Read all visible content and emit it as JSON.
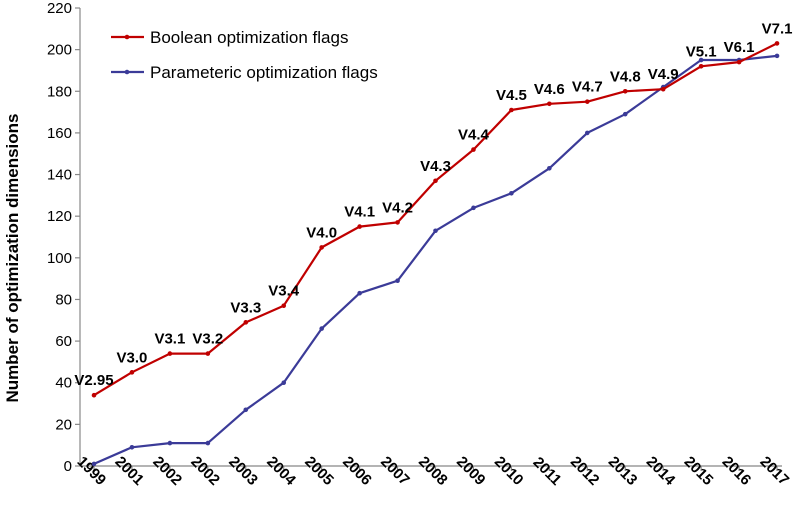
{
  "chart_data": {
    "type": "line",
    "title": "",
    "xlabel": "",
    "ylabel": "Number of optimization dimensions",
    "ylim": [
      0,
      220
    ],
    "yticks": [
      0,
      20,
      40,
      60,
      80,
      100,
      120,
      140,
      160,
      180,
      200,
      220
    ],
    "grid": false,
    "legend_position": "top-left",
    "categories": [
      "1999",
      "2001",
      "2002",
      "2002",
      "2003",
      "2004",
      "2005",
      "2006",
      "2007",
      "2008",
      "2009",
      "2010",
      "2011",
      "2012",
      "2013",
      "2014",
      "2015",
      "2016",
      "2017"
    ],
    "versions": [
      "V2.95",
      "V3.0",
      "V3.1",
      "V3.2",
      "V3.3",
      "V3.4",
      "V4.0",
      "V4.1",
      "V4.2",
      "V4.3",
      "V4.4",
      "V4.5",
      "V4.6",
      "V4.7",
      "V4.8",
      "V4.9",
      "V5.1",
      "V6.1",
      "V7.1"
    ],
    "series": [
      {
        "name": "Boolean optimization flags",
        "color": "#c00000",
        "values": [
          34,
          45,
          54,
          54,
          69,
          77,
          105,
          115,
          117,
          137,
          152,
          171,
          174,
          175,
          180,
          181,
          192,
          194,
          203
        ]
      },
      {
        "name": "Parameteric optimization flags",
        "color": "#3b3b98",
        "values": [
          1,
          9,
          11,
          11,
          27,
          40,
          66,
          83,
          89,
          113,
          124,
          131,
          143,
          160,
          169,
          182,
          195,
          195,
          197
        ]
      }
    ]
  }
}
